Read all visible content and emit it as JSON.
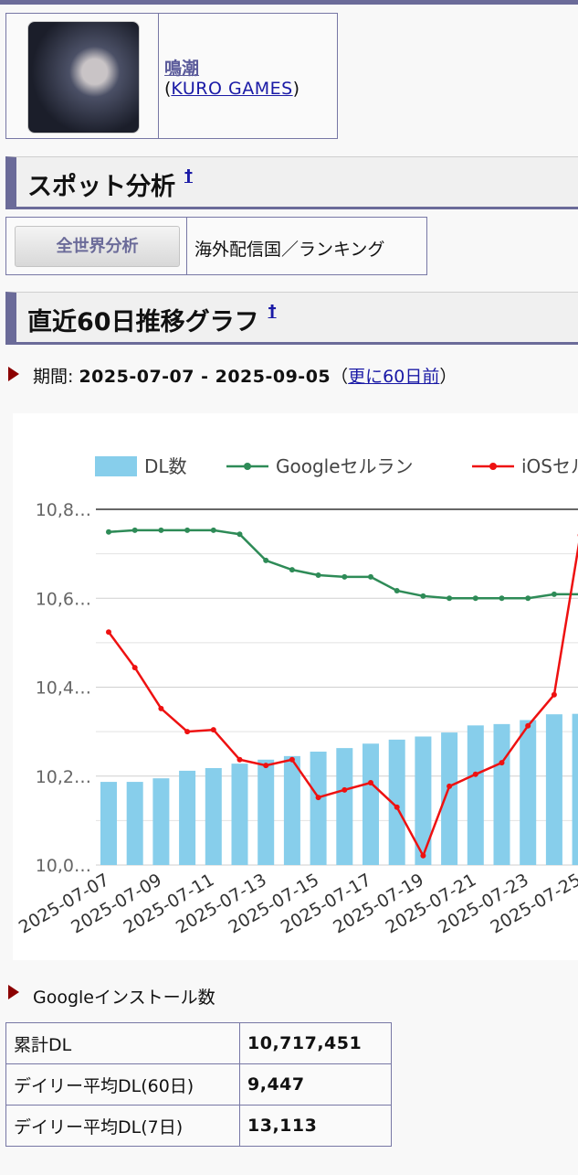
{
  "app": {
    "name": "鳴潮",
    "developer_open": "(",
    "developer": "KURO GAMES",
    "developer_close": ")"
  },
  "spot_heading": {
    "title": "スポット分析",
    "mark": "†"
  },
  "spot_row": {
    "button": "全世界分析",
    "text": "海外配信国／ランキング"
  },
  "graph_heading": {
    "title": "直近60日推移グラフ",
    "mark": "†"
  },
  "period": {
    "label": "期間:",
    "range": "2025-07-07 - 2025-09-05",
    "open": "（",
    "link": "更に60日前",
    "close": "）"
  },
  "chart_data": {
    "type": "combo",
    "categories": [
      "2025-07-07",
      null,
      "2025-07-09",
      null,
      "2025-07-11",
      null,
      "2025-07-13",
      null,
      "2025-07-15",
      null,
      "2025-07-17",
      null,
      "2025-07-19",
      null,
      "2025-07-21",
      null,
      "2025-07-23",
      null,
      "2025-07-25"
    ],
    "ylim": [
      10000000,
      10800000
    ],
    "yticks": [
      {
        "value": 10000000,
        "label": "10,0…"
      },
      {
        "value": 10200000,
        "label": "10,2…"
      },
      {
        "value": 10400000,
        "label": "10,4…"
      },
      {
        "value": 10600000,
        "label": "10,6…"
      },
      {
        "value": 10800000,
        "label": "10,8…"
      }
    ],
    "minor_yticks": [
      10100000,
      10300000,
      10500000,
      10700000
    ],
    "grid": true,
    "legend": "top",
    "series": [
      {
        "name": "DL数",
        "type": "bar",
        "color": "#87ceeb",
        "values": [
          10187000,
          10187000,
          10195000,
          10212000,
          10218000,
          10228000,
          10237000,
          10245000,
          10255000,
          10263000,
          10273000,
          10282000,
          10289000,
          10298000,
          10314000,
          10317000,
          10326000,
          10339000,
          10340000
        ]
      },
      {
        "name": "Googleセルラン",
        "type": "line",
        "color": "#2e8b57",
        "values": [
          10749000,
          10753000,
          10753000,
          10753000,
          10753000,
          10744000,
          10685000,
          10664000,
          10652000,
          10648000,
          10648000,
          10617000,
          10605000,
          10600000,
          10600000,
          10600000,
          10600000,
          10609000,
          10609000
        ]
      },
      {
        "name": "iOSセルラン",
        "type": "line",
        "color": "#ee1111",
        "values": [
          10524000,
          10444000,
          10352000,
          10300000,
          10304000,
          10237000,
          10224000,
          10237000,
          10152000,
          10169000,
          10185000,
          10130000,
          10021000,
          10177000,
          10204000,
          10230000,
          10313000,
          10383000,
          10742000
        ]
      }
    ]
  },
  "installs": {
    "title": "Googleインストール数",
    "rows": [
      [
        "累計DL",
        "10,717,451"
      ],
      [
        "デイリー平均DL(60日)",
        "9,447"
      ],
      [
        "デイリー平均DL(7日)",
        "13,113"
      ]
    ]
  }
}
